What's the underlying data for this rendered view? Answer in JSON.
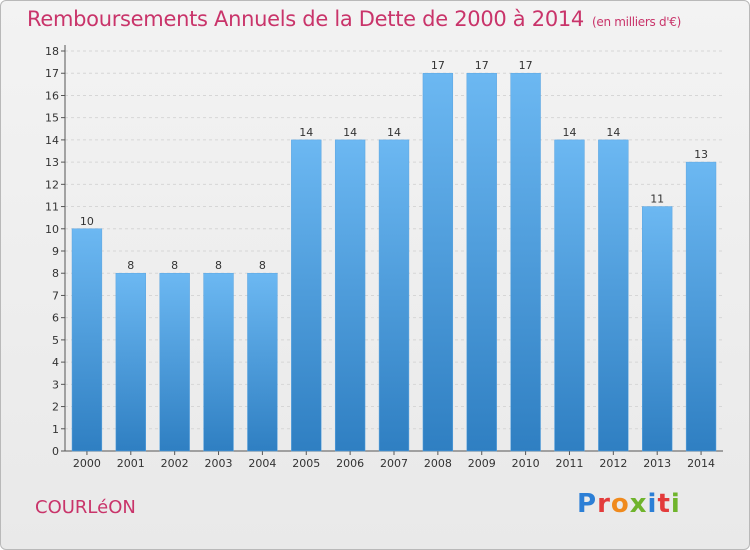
{
  "title": "Remboursements Annuels de la Dette de 2000 à 2014",
  "subtitle": "(en milliers d'€)",
  "location": "COURLéON",
  "logo_text": "Proxiti",
  "colors": {
    "accent": "#c9346a",
    "bar_top": "#6cb8f2",
    "bar_bottom": "#2f7fc2"
  },
  "chart_data": {
    "type": "bar",
    "title": "Remboursements Annuels de la Dette de 2000 à 2014",
    "subtitle": "(en milliers d'€)",
    "xlabel": "",
    "ylabel": "",
    "categories": [
      "2000",
      "2001",
      "2002",
      "2003",
      "2004",
      "2005",
      "2006",
      "2007",
      "2008",
      "2009",
      "2010",
      "2011",
      "2012",
      "2013",
      "2014"
    ],
    "values": [
      10,
      8,
      8,
      8,
      8,
      14,
      14,
      14,
      17,
      17,
      17,
      14,
      14,
      11,
      13
    ],
    "ylim": [
      0,
      18
    ],
    "yticks": [
      0,
      1,
      2,
      3,
      4,
      5,
      6,
      7,
      8,
      9,
      10,
      11,
      12,
      13,
      14,
      15,
      16,
      17,
      18
    ],
    "grid": true,
    "legend": "none"
  }
}
